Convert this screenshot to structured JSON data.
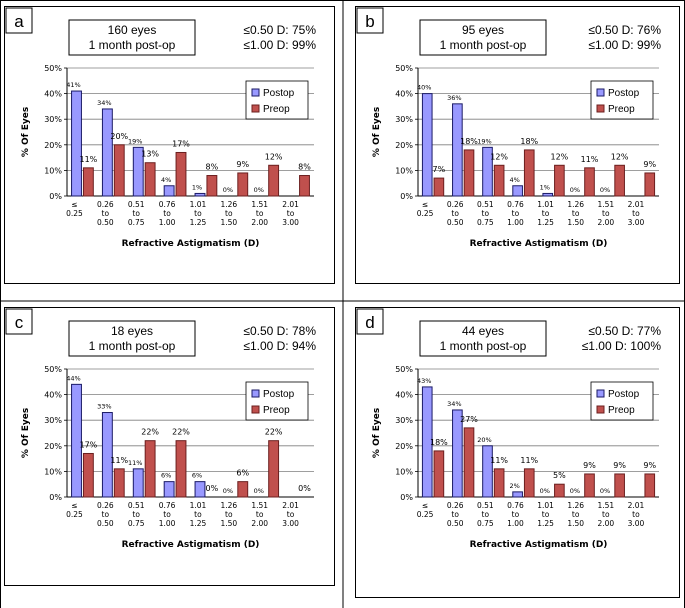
{
  "colors": {
    "postop_fill": "#9999ff",
    "postop_stroke": "#1a1a66",
    "preop_fill": "#c0504d",
    "preop_stroke": "#6b1f1f",
    "grid": "#7f7f7f",
    "border": "#000000"
  },
  "categories": [
    [
      "≤",
      "0.25"
    ],
    [
      "0.26",
      "to",
      "0.50"
    ],
    [
      "0.51",
      "to",
      "0.75"
    ],
    [
      "0.76",
      "to",
      "1.00"
    ],
    [
      "1.01",
      "to",
      "1.25"
    ],
    [
      "1.26",
      "to",
      "1.50"
    ],
    [
      "1.51",
      "to",
      "2.00"
    ],
    [
      "2.01",
      "to",
      "3.00"
    ]
  ],
  "ytick_labels": [
    "0%",
    "10%",
    "20%",
    "30%",
    "40%",
    "50%"
  ],
  "legend": {
    "postop": "Postop",
    "preop": "Preop"
  },
  "ylabel": "% Of Eyes",
  "xlabel": "Refractive Astigmatism (D)",
  "chart_data": [
    {
      "type": "bar",
      "panel": "a",
      "title_line1": "160 eyes",
      "title_line2": "1 month post-op",
      "stat_line1": "≤0.50 D: 75%",
      "stat_line2": "≤1.00 D: 99%",
      "ylim": [
        0,
        50
      ],
      "series": [
        {
          "name": "Postop",
          "values": [
            41,
            34,
            19,
            4,
            1,
            0,
            0,
            null
          ],
          "labels": [
            "41%",
            "34%",
            "19%",
            "4%",
            "1%",
            "0%",
            "0%",
            ""
          ]
        },
        {
          "name": "Preop",
          "values": [
            11,
            20,
            13,
            17,
            8,
            9,
            12,
            8
          ],
          "labels": [
            "11%",
            "20%",
            "13%",
            "17%",
            "8%",
            "9%",
            "12%",
            "8%"
          ]
        }
      ]
    },
    {
      "type": "bar",
      "panel": "b",
      "title_line1": "95 eyes",
      "title_line2": "1 month post-op",
      "stat_line1": "≤0.50 D: 76%",
      "stat_line2": "≤1.00 D: 99%",
      "ylim": [
        0,
        50
      ],
      "series": [
        {
          "name": "Postop",
          "values": [
            40,
            36,
            19,
            4,
            1,
            0,
            0,
            null
          ],
          "labels": [
            "40%",
            "36%",
            "19%",
            "4%",
            "1%",
            "0%",
            "0%",
            ""
          ]
        },
        {
          "name": "Preop",
          "values": [
            7,
            18,
            12,
            18,
            12,
            11,
            12,
            9
          ],
          "labels": [
            "7%",
            "18%",
            "12%",
            "18%",
            "12%",
            "11%",
            "12%",
            "9%"
          ]
        }
      ]
    },
    {
      "type": "bar",
      "panel": "c",
      "title_line1": "18 eyes",
      "title_line2": "1 month post-op",
      "stat_line1": "≤0.50 D: 78%",
      "stat_line2": "≤1.00 D: 94%",
      "ylim": [
        0,
        50
      ],
      "series": [
        {
          "name": "Postop",
          "values": [
            44,
            33,
            11,
            6,
            6,
            0,
            0,
            null
          ],
          "labels": [
            "44%",
            "33%",
            "11%",
            "6%",
            "6%",
            "0%",
            "0%",
            ""
          ]
        },
        {
          "name": "Preop",
          "values": [
            17,
            11,
            22,
            22,
            0,
            6,
            22,
            0
          ],
          "labels": [
            "17%",
            "11%",
            "22%",
            "22%",
            "0%",
            "6%",
            "22%",
            "0%"
          ]
        }
      ]
    },
    {
      "type": "bar",
      "panel": "d",
      "title_line1": "44 eyes",
      "title_line2": "1 month post-op",
      "stat_line1": "≤0.50 D: 77%",
      "stat_line2": "≤1.00 D: 100%",
      "ylim": [
        0,
        50
      ],
      "series": [
        {
          "name": "Postop",
          "values": [
            43,
            34,
            20,
            2,
            0,
            0,
            0,
            null
          ],
          "labels": [
            "43%",
            "34%",
            "20%",
            "2%",
            "0%",
            "0%",
            "0%",
            ""
          ]
        },
        {
          "name": "Preop",
          "values": [
            18,
            27,
            11,
            11,
            5,
            9,
            9,
            9
          ],
          "labels": [
            "18%",
            "27%",
            "11%",
            "11%",
            "5%",
            "9%",
            "9%",
            "9%"
          ]
        }
      ]
    }
  ]
}
